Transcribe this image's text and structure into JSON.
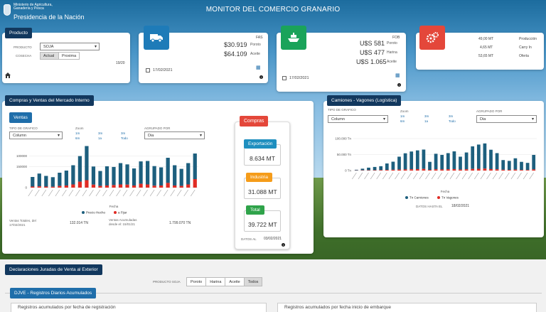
{
  "header": {
    "ministry_line1": "Ministerio de Agricultura,",
    "ministry_line2": "Ganadería y Pesca",
    "presidencia": "Presidencia de la Nación",
    "app_title": "MONITOR DEL COMERCIO GRANARIO"
  },
  "producto": {
    "tab": "Producto",
    "producto_label": "PRODUCTO",
    "producto_value": "SOJA",
    "cosecha_label": "COSECHA",
    "btn_actual": "Actual",
    "btn_proxima": "Proxima",
    "campaign": "19/20"
  },
  "fas": {
    "label": "FAS",
    "rows": [
      {
        "value": "$30.919",
        "name": "Poroto"
      },
      {
        "value": "$64.109",
        "name": "Aceite"
      }
    ],
    "date": "17/02/2021"
  },
  "fob": {
    "label": "FOB",
    "rows": [
      {
        "value": "U$S 581",
        "name": "Poroto"
      },
      {
        "value": "U$S 477",
        "name": "Harina"
      },
      {
        "value": "U$S 1.065",
        "name": "Aceite"
      }
    ],
    "date": "17/02/2021"
  },
  "stocks": {
    "rows": [
      {
        "value": "49,00 MT",
        "name": "Producción"
      },
      {
        "value": "4,65 MT",
        "name": "Carry In"
      },
      {
        "value": "53,65 MT",
        "name": "Oferta"
      }
    ]
  },
  "compras_ventas": {
    "tab": "Compras y Ventas del Mercado Interno",
    "ventas_tab": "Ventas",
    "tipo_label": "TIPO DE GRAFICO",
    "tipo_value": "Column",
    "zoom_label": "Zoom",
    "zoom_opts": [
      "1m",
      "3m",
      "3m",
      "6m",
      "1a",
      "Todo"
    ],
    "agrupado_label": "AGRUPADO POR",
    "agrupado_value": "Dia",
    "fecha_label": "Fecha",
    "ventas_totales_label": "Ventas Totales, del",
    "ventas_totales_date": "17/02/2021",
    "ventas_totales_value": "132.014 TN",
    "acumuladas_label": "Ventas Acumuladas",
    "acumuladas_desde": "desde el: 15/01/21",
    "acumuladas_value": "1.799.070 TN"
  },
  "compras": {
    "tab": "Compras",
    "exportacion_label": "Exportación",
    "exportacion_value": "8.634 MT",
    "industria_label": "Industria",
    "industria_value": "31.088 MT",
    "total_label": "Total",
    "total_value": "39.722 MT",
    "datos_label": "DATOS AL",
    "datos_date": "03/02/2021"
  },
  "camiones": {
    "tab": "Camiones - Vagones (Logística)",
    "tipo_label": "TIPO DE GRAFICO",
    "tipo_value": "Column",
    "zoom_label": "Zoom",
    "zoom_opts": [
      "1m",
      "3m",
      "3m",
      "6m",
      "1a",
      "Todo"
    ],
    "agrupado_label": "AGRUPADO POR",
    "agrupado_value": "Dia",
    "fecha_label": "Fecha",
    "datos_label": "DATOS HASTA EL",
    "datos_date": "18/02/2021"
  },
  "declaraciones": {
    "tab": "Declaraciones Juradas de Venta al Exterior",
    "producto_soja_label": "PRODUCTO SOJA",
    "options": [
      "Poroto",
      "Harina",
      "Aceite",
      "Todos"
    ],
    "active": "Todos",
    "djve_tab": "DJVE - Registros Diarios Acumulados",
    "left_title": "Registros acumulados por fecha de registración",
    "right_title": "Registros acumulados por fecha inicio de embarque"
  },
  "chart_data": [
    {
      "type": "bar",
      "title": "",
      "series": [
        {
          "name": "Precio Hecho",
          "values": [
            45000,
            60000,
            50000,
            45000,
            62000,
            70000,
            90000,
            120000,
            160000,
            85000,
            70000,
            90000,
            85000,
            100000,
            95000,
            80000,
            105000,
            110000,
            92000,
            85000,
            118000,
            95000,
            80000,
            100000,
            120000
          ]
        },
        {
          "name": "a Fijar",
          "values": [
            5000,
            6000,
            5000,
            4000,
            8000,
            10000,
            15000,
            28000,
            35000,
            14000,
            8000,
            10000,
            12000,
            15000,
            14000,
            10000,
            18000,
            15000,
            9000,
            10000,
            22000,
            10000,
            8000,
            15000,
            40000
          ]
        }
      ],
      "yticks": [
        "100000",
        "150000",
        "0"
      ],
      "colors": [
        "#1d5f7e",
        "#e02b24"
      ],
      "xlabel": "Fecha",
      "stacked": true,
      "ylim": [
        0,
        180000
      ]
    },
    {
      "type": "bar",
      "title": "",
      "series": [
        {
          "name": "Tn Camiones",
          "values": [
            2000,
            5000,
            8000,
            10000,
            12000,
            20000,
            25000,
            40000,
            50000,
            55000,
            58000,
            60000,
            25000,
            48000,
            45000,
            50000,
            55000,
            40000,
            52000,
            70000,
            75000,
            78000,
            60000,
            50000,
            30000,
            28000,
            35000,
            25000,
            22000,
            45000
          ]
        },
        {
          "name": "Tn Vagones",
          "values": [
            500,
            800,
            1000,
            1200,
            1500,
            2000,
            2500,
            3000,
            3500,
            4000,
            4500,
            5000,
            2000,
            4000,
            3500,
            4000,
            4500,
            3000,
            4000,
            5000,
            5500,
            6000,
            4500,
            4000,
            2500,
            2000,
            3000,
            2000,
            1800,
            3500
          ]
        }
      ],
      "yticks": [
        "100.000 Tn",
        "50.000 Tn",
        "0 Tn"
      ],
      "colors": [
        "#1d5f7e",
        "#e02b24"
      ],
      "xlabel": "Fecha",
      "stacked": true,
      "ylim": [
        0,
        110000
      ]
    }
  ]
}
